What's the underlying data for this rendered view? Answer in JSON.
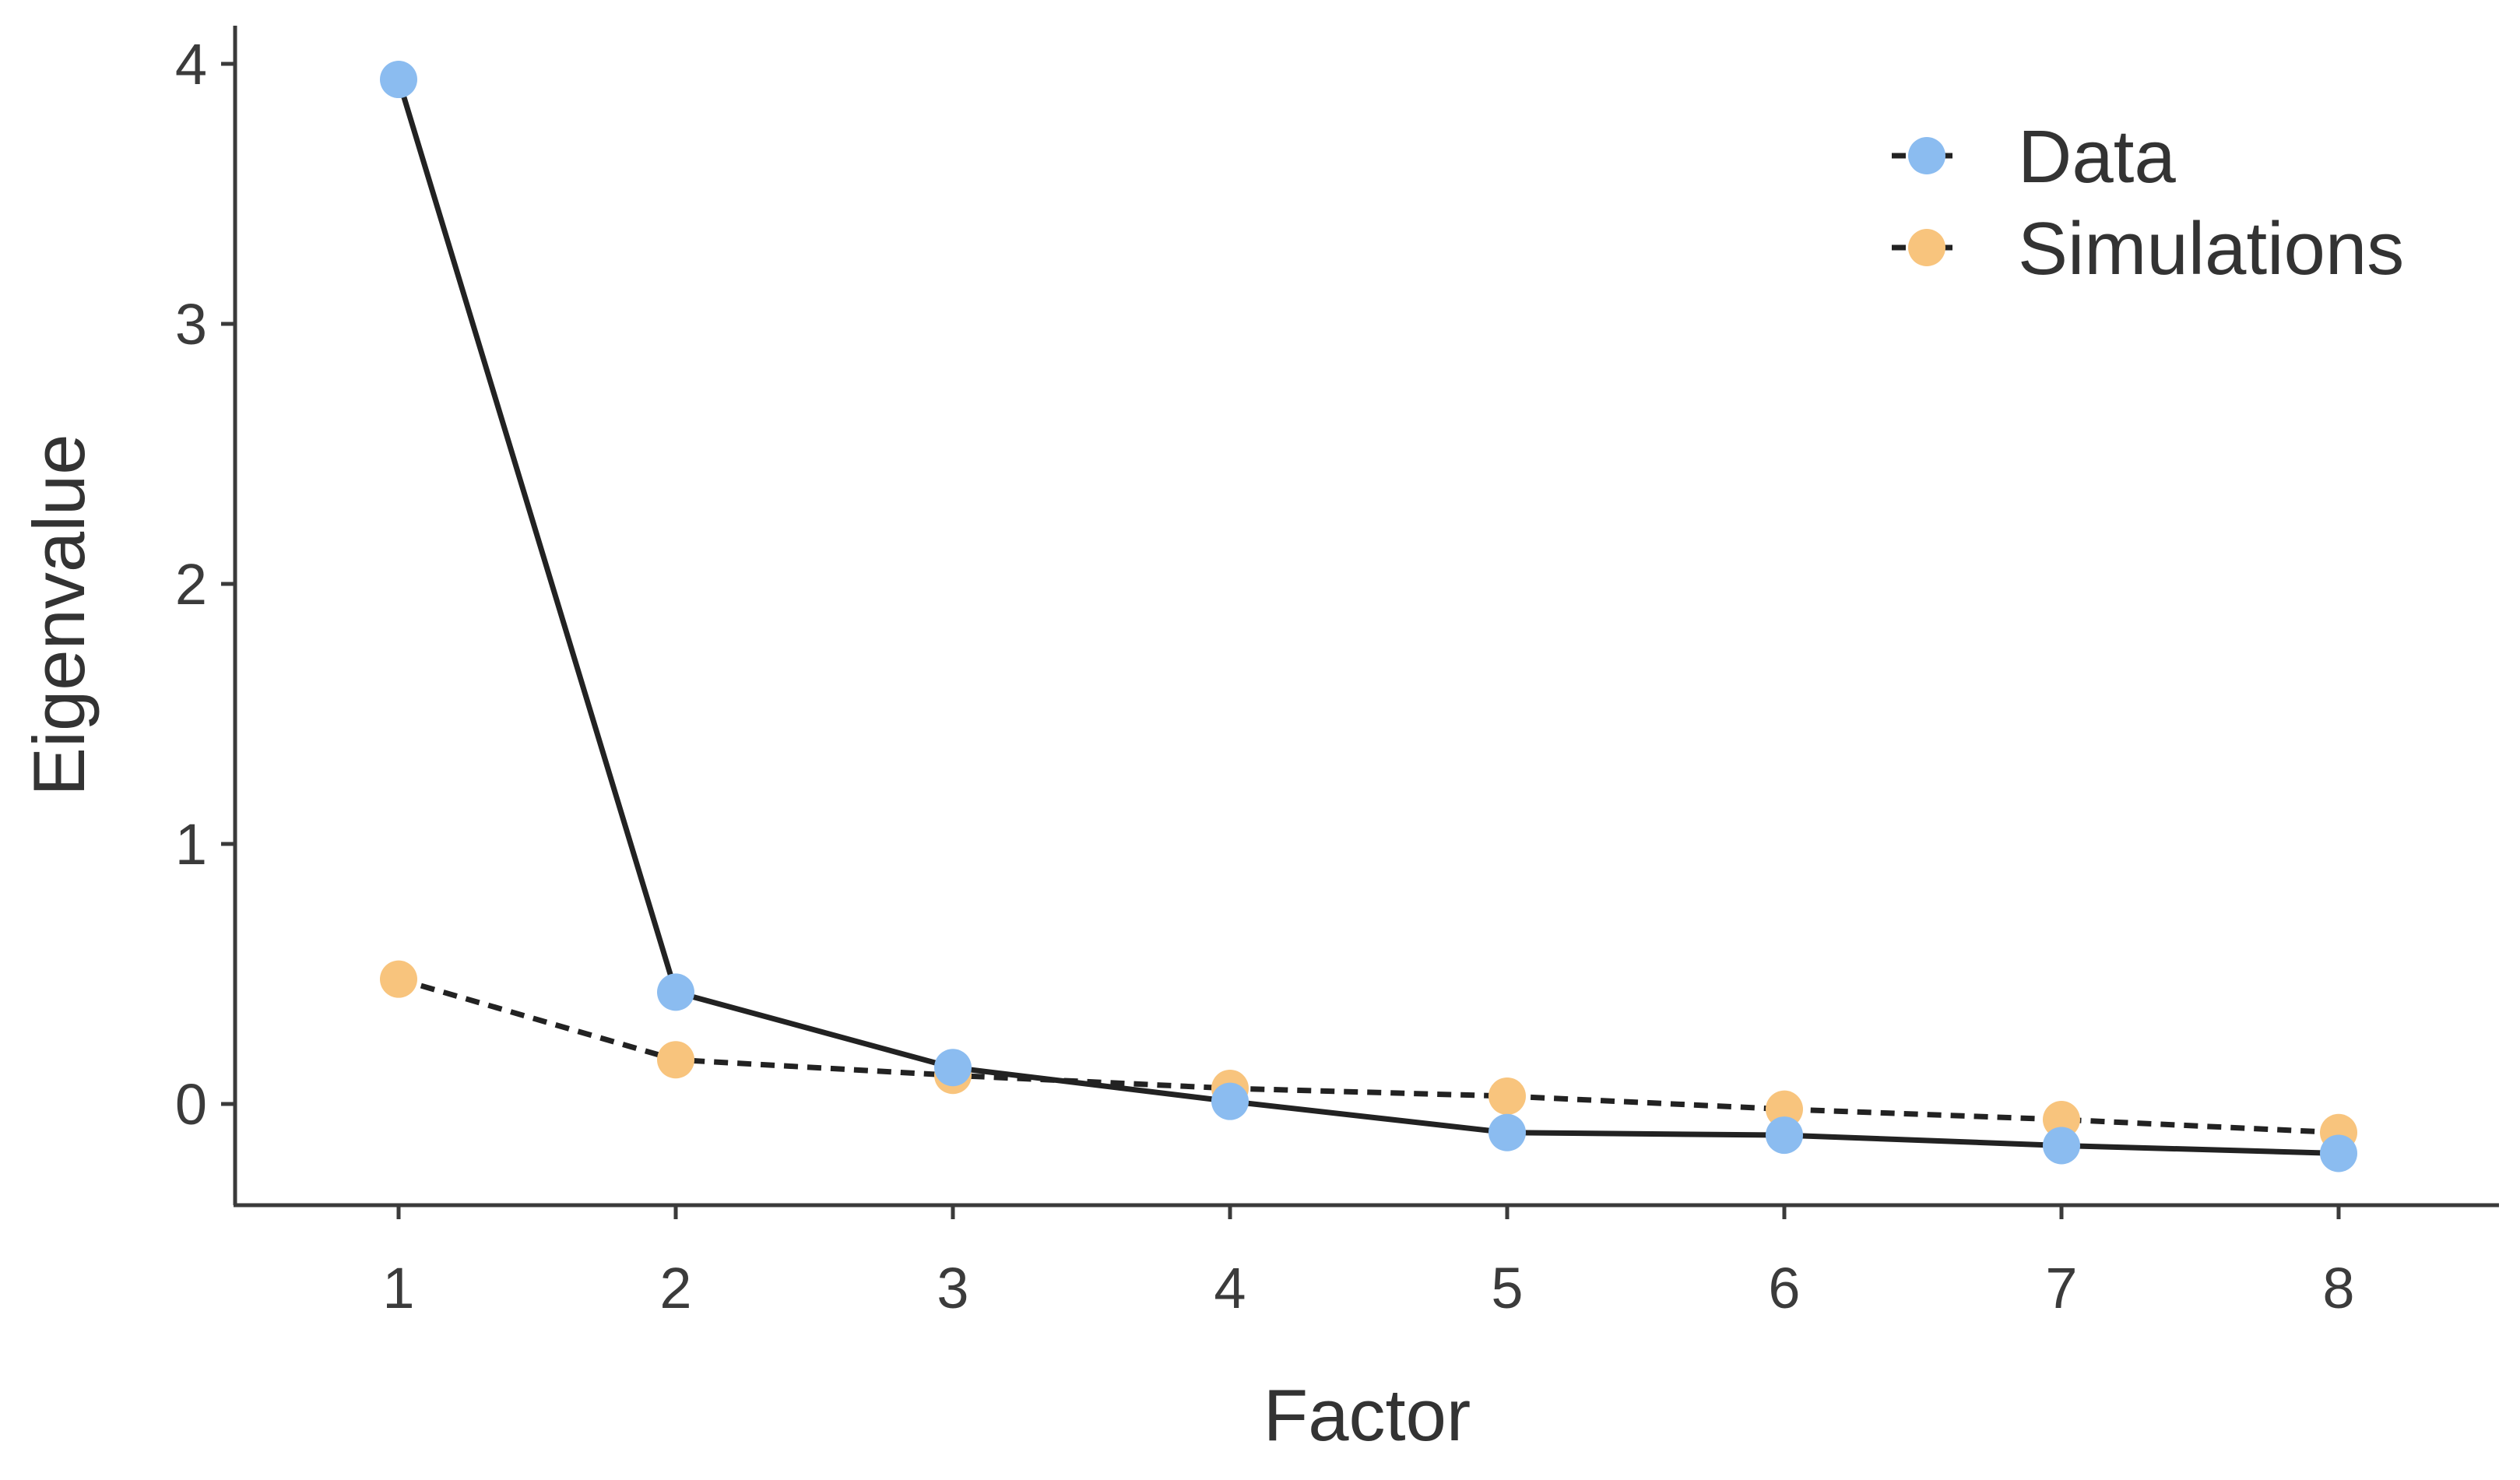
{
  "chart_data": {
    "type": "line",
    "xlabel": "Factor",
    "ylabel": "Eigenvalue",
    "x": [
      1,
      2,
      3,
      4,
      5,
      6,
      7,
      8
    ],
    "xlim": [
      0.4,
      8.5
    ],
    "ylim": [
      -0.4,
      4.15
    ],
    "xticks": [
      1,
      2,
      3,
      4,
      5,
      6,
      7,
      8
    ],
    "yticks": [
      0,
      1,
      2,
      3,
      4
    ],
    "grid": false,
    "legend_position": "top-right",
    "series": [
      {
        "name": "Data",
        "values": [
          3.94,
          0.43,
          0.14,
          0.01,
          -0.11,
          -0.12,
          -0.16,
          -0.19
        ],
        "color": "#8bbcf0",
        "line_style": "solid"
      },
      {
        "name": "Simulations",
        "values": [
          0.48,
          0.17,
          0.11,
          0.06,
          0.03,
          -0.02,
          -0.06,
          -0.11
        ],
        "color": "#f8c47d",
        "line_style": "dashed"
      }
    ]
  }
}
